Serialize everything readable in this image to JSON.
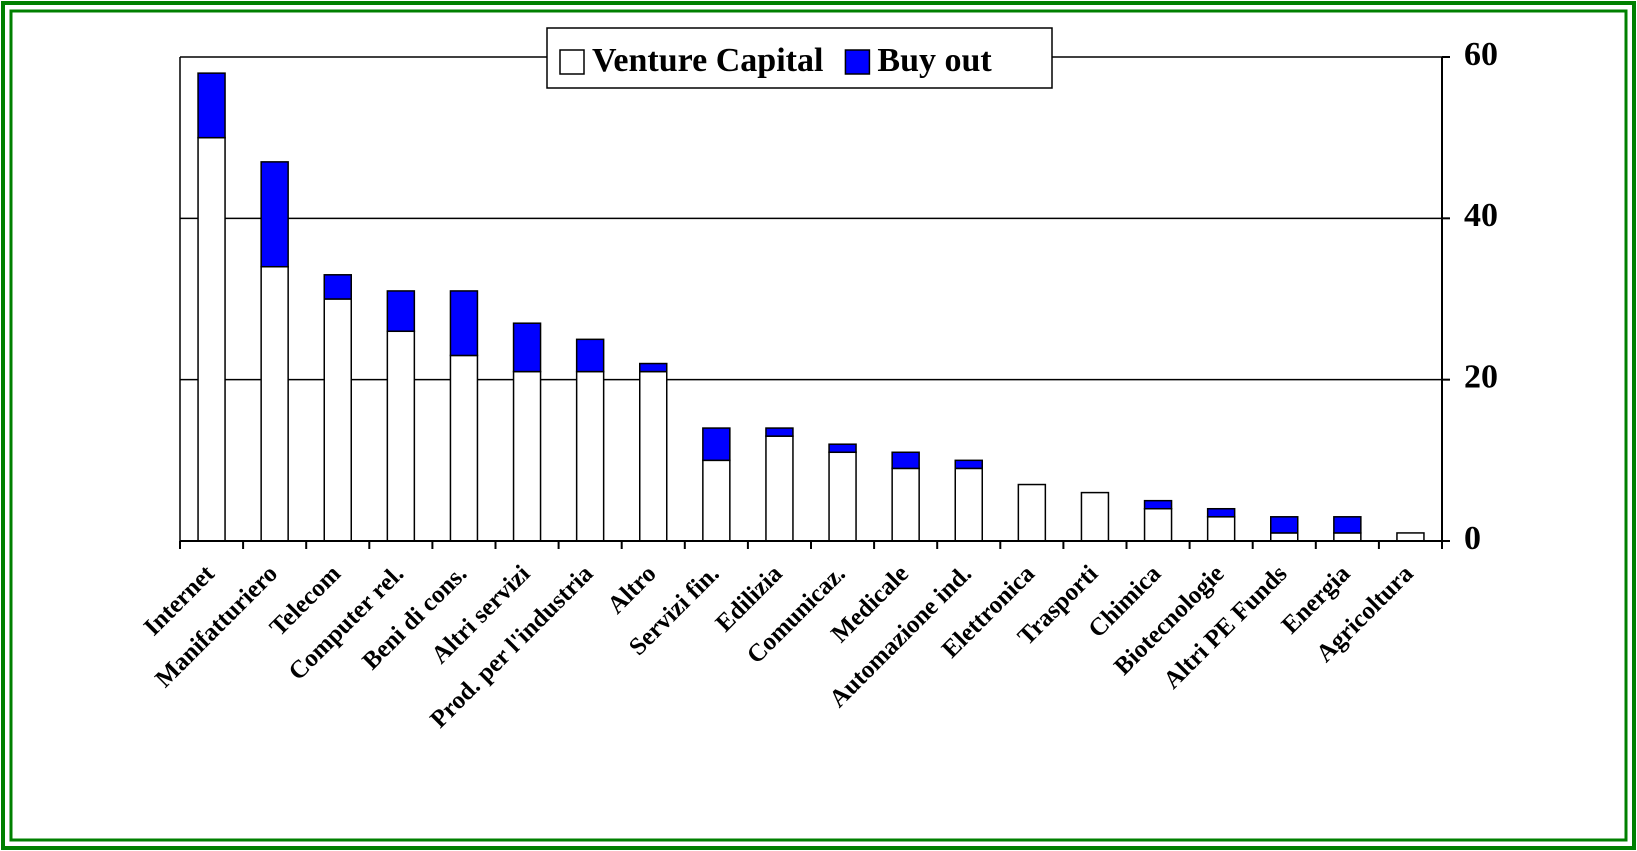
{
  "chart_data": {
    "type": "stacked_bar",
    "categories": [
      "Internet",
      "Manifatturiero",
      "Telecom",
      "Computer rel.",
      "Beni di cons.",
      "Altri servizi",
      "Prod. per l'industria",
      "Altro",
      "Servizi fin.",
      "Edilizia",
      "Comunicaz.",
      "Medicale",
      "Automazione ind.",
      "Elettronica",
      "Trasporti",
      "Chimica",
      "Biotecnologie",
      "Altri PE Funds",
      "Energia",
      "Agricoltura"
    ],
    "series": [
      {
        "name": "Venture Capital",
        "color": "#ffffff",
        "values": [
          50,
          34,
          30,
          26,
          23,
          21,
          21,
          21,
          10,
          13,
          11,
          9,
          9,
          7,
          6,
          4,
          3,
          1,
          1,
          1
        ]
      },
      {
        "name": "Buy out",
        "color": "#0000ff",
        "values": [
          8,
          13,
          3,
          5,
          8,
          6,
          4,
          1,
          4,
          1,
          1,
          2,
          1,
          0,
          0,
          1,
          1,
          2,
          2,
          0
        ]
      }
    ],
    "ylim": [
      0,
      60
    ],
    "yticks": [
      0,
      20,
      40,
      60
    ],
    "grid": true,
    "y_axis_side": "right",
    "legend": "top"
  }
}
